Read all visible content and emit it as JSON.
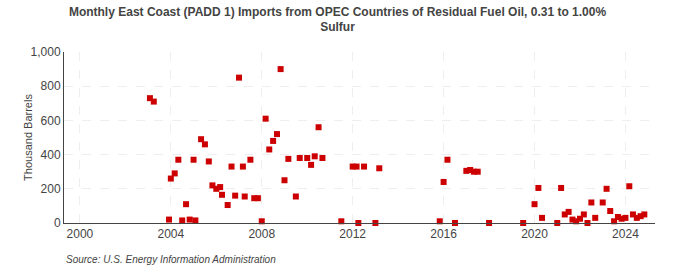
{
  "chart_data": {
    "type": "scatter",
    "title": "Monthly East Coast (PADD 1) Imports from OPEC Countries of Residual Fuel Oil, 0.31 to 1.00%\nSulfur",
    "ylabel": "Thousand Barrels",
    "annotations": [
      "Source: U.S. Energy Information Administration"
    ],
    "color": "#cc0000",
    "marker": "square",
    "grid": true,
    "xlim": [
      1999.3,
      2025.3
    ],
    "xticks": [
      2000,
      2004,
      2008,
      2012,
      2016,
      2020,
      2024
    ],
    "ylim": [
      0,
      1000
    ],
    "yticks": [
      0,
      200,
      400,
      600,
      800,
      {
        "value": 1000,
        "label": "1,000"
      }
    ],
    "x": [
      2003.08,
      2003.25,
      2003.92,
      2004.0,
      2004.17,
      2004.33,
      2004.5,
      2004.67,
      2004.83,
      2005.0,
      2005.08,
      2005.33,
      2005.5,
      2005.67,
      2005.83,
      2006.0,
      2006.17,
      2006.25,
      2006.5,
      2006.67,
      2006.83,
      2007.0,
      2007.17,
      2007.25,
      2007.5,
      2007.67,
      2007.83,
      2008.0,
      2008.17,
      2008.33,
      2008.5,
      2008.67,
      2008.83,
      2009.0,
      2009.17,
      2009.5,
      2009.67,
      2010.0,
      2010.17,
      2010.33,
      2010.5,
      2010.67,
      2011.5,
      2012.0,
      2012.17,
      2012.25,
      2012.5,
      2013.0,
      2013.17,
      2015.83,
      2016.0,
      2016.17,
      2016.5,
      2017.0,
      2017.17,
      2017.33,
      2017.5,
      2018.0,
      2019.5,
      2020.0,
      2020.17,
      2020.33,
      2021.0,
      2021.17,
      2021.33,
      2021.5,
      2021.67,
      2021.83,
      2022.0,
      2022.17,
      2022.33,
      2022.5,
      2022.67,
      2023.0,
      2023.17,
      2023.33,
      2023.5,
      2023.67,
      2023.83,
      2024.0,
      2024.17,
      2024.33,
      2024.5,
      2024.67,
      2024.83
    ],
    "values": [
      730,
      710,
      20,
      260,
      290,
      370,
      15,
      110,
      20,
      370,
      15,
      490,
      460,
      360,
      220,
      200,
      210,
      165,
      105,
      330,
      160,
      850,
      330,
      155,
      370,
      145,
      145,
      10,
      610,
      430,
      480,
      520,
      900,
      250,
      375,
      155,
      380,
      380,
      340,
      390,
      560,
      380,
      10,
      330,
      330,
      0,
      330,
      0,
      320,
      10,
      240,
      370,
      0,
      305,
      310,
      300,
      300,
      0,
      0,
      110,
      205,
      30,
      0,
      205,
      50,
      65,
      20,
      10,
      25,
      50,
      0,
      120,
      30,
      120,
      200,
      70,
      10,
      35,
      25,
      30,
      215,
      50,
      30,
      40,
      50
    ]
  }
}
